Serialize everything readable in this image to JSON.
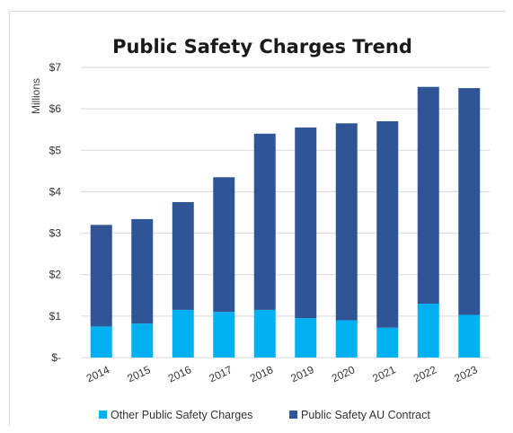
{
  "chart_data": {
    "type": "bar",
    "stacked": true,
    "title": "Public Safety Charges Trend",
    "ylabel": "Millions",
    "xlabel": "",
    "categories": [
      "2014",
      "2015",
      "2016",
      "2017",
      "2018",
      "2019",
      "2020",
      "2021",
      "2022",
      "2023"
    ],
    "series": [
      {
        "name": "Other Public Safety Charges",
        "color": "#00b0f0",
        "values": [
          0.75,
          0.82,
          1.15,
          1.1,
          1.15,
          0.95,
          0.9,
          0.72,
          1.3,
          1.03
        ]
      },
      {
        "name": "Public Safety AU Contract",
        "color": "#2f5597",
        "values": [
          2.45,
          2.52,
          2.6,
          3.25,
          4.25,
          4.6,
          4.75,
          4.98,
          5.23,
          5.47
        ]
      }
    ],
    "ylim": [
      0,
      7
    ],
    "yticks": [
      0,
      1,
      2,
      3,
      4,
      5,
      6,
      7
    ],
    "ytick_labels": [
      "$-",
      "$1",
      "$2",
      "$3",
      "$4",
      "$5",
      "$6",
      "$7"
    ],
    "grid": true,
    "legend_position": "bottom"
  }
}
